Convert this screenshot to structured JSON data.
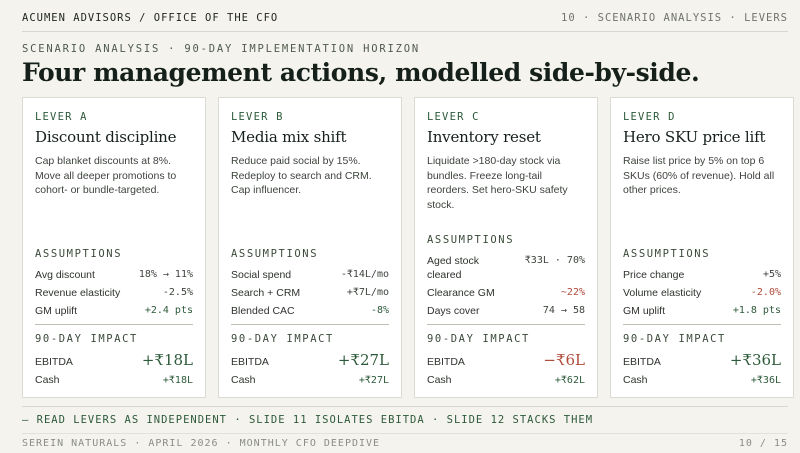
{
  "header": {
    "brand": "ACUMEN ADVISORS / OFFICE OF THE CFO",
    "crumb": "10 · SCENARIO ANALYSIS · LEVERS"
  },
  "kicker": "SCENARIO ANALYSIS · 90-DAY IMPLEMENTATION HORIZON",
  "headline": "Four management actions, modelled side-by-side.",
  "labels": {
    "assumptions": "ASSUMPTIONS",
    "impact": "90-DAY IMPACT",
    "ebitda": "EBITDA",
    "cash": "Cash"
  },
  "levers": [
    {
      "tag": "LEVER A",
      "title": "Discount discipline",
      "desc": "Cap blanket discounts at 8%. Move all deeper promotions to cohort- or bundle-targeted.",
      "assumptions": [
        {
          "label": "Avg discount",
          "value": "18% → 11%"
        },
        {
          "label": "Revenue elasticity",
          "value": "-2.5%"
        },
        {
          "label": "GM uplift",
          "value": "+2.4 pts"
        }
      ],
      "ebitda": "+₹18L",
      "cash": "+₹18L"
    },
    {
      "tag": "LEVER B",
      "title": "Media mix shift",
      "desc": "Reduce paid social by 15%. Redeploy to search and CRM. Cap influencer.",
      "assumptions": [
        {
          "label": "Social spend",
          "value": "-₹14L/mo"
        },
        {
          "label": "Search + CRM",
          "value": "+₹7L/mo"
        },
        {
          "label": "Blended CAC",
          "value": "-8%"
        }
      ],
      "ebitda": "+₹27L",
      "cash": "+₹27L"
    },
    {
      "tag": "LEVER C",
      "title": "Inventory reset",
      "desc": "Liquidate >180-day stock via bundles. Freeze long-tail reorders. Set hero-SKU safety stock.",
      "assumptions": [
        {
          "label": "Aged stock cleared",
          "value": "₹33L · 70%"
        },
        {
          "label": "Clearance GM",
          "value": "~22%"
        },
        {
          "label": "Days cover",
          "value": "74 → 58"
        }
      ],
      "ebitda": "−₹6L",
      "cash": "+₹62L"
    },
    {
      "tag": "LEVER D",
      "title": "Hero SKU price lift",
      "desc": "Raise list price by 5% on top 6 SKUs (60% of revenue). Hold all other prices.",
      "assumptions": [
        {
          "label": "Price change",
          "value": "+5%"
        },
        {
          "label": "Volume elasticity",
          "value": "-2.0%"
        },
        {
          "label": "GM uplift",
          "value": "+1.8 pts"
        }
      ],
      "ebitda": "+₹36L",
      "cash": "+₹36L"
    }
  ],
  "note": "— READ LEVERS AS INDEPENDENT · SLIDE 11 ISOLATES EBITDA · SLIDE 12 STACKS THEM",
  "footer": {
    "left": "SEREIN NATURALS · APRIL 2026 · MONTHLY CFO DEEPDIVE",
    "right": "10 / 15"
  },
  "colors": {
    "accent": "#2d5a3a",
    "negative": "#b04a3b",
    "background": "#f4f3ed"
  }
}
